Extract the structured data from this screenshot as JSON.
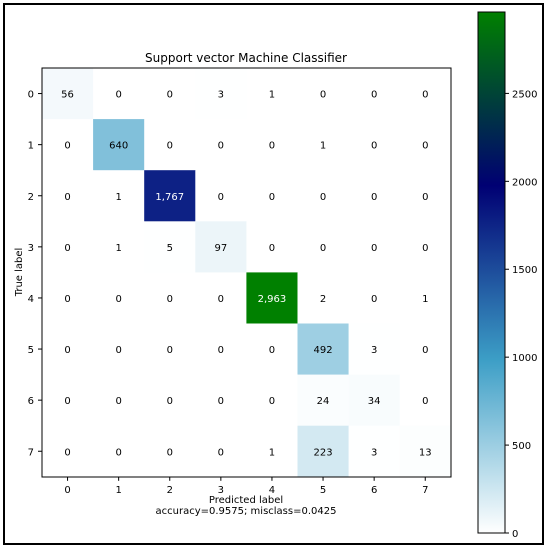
{
  "chart_data": {
    "type": "heatmap",
    "title": "Support vector Machine Classifier",
    "xlabel": "Predicted label",
    "xlabel_sub": "accuracy=0.9575; misclass=0.0425",
    "ylabel": "True label",
    "row_labels": [
      "0",
      "1",
      "2",
      "3",
      "4",
      "5",
      "6",
      "7"
    ],
    "col_labels": [
      "0",
      "1",
      "2",
      "3",
      "4",
      "5",
      "6",
      "7"
    ],
    "cell_text": [
      [
        "56",
        "0",
        "0",
        "3",
        "1",
        "0",
        "0",
        "0"
      ],
      [
        "0",
        "640",
        "0",
        "0",
        "0",
        "1",
        "0",
        "0"
      ],
      [
        "0",
        "1",
        "1,767",
        "0",
        "0",
        "0",
        "0",
        "0"
      ],
      [
        "0",
        "1",
        "5",
        "97",
        "0",
        "0",
        "0",
        "0"
      ],
      [
        "0",
        "0",
        "0",
        "0",
        "2,963",
        "2",
        "0",
        "1"
      ],
      [
        "0",
        "0",
        "0",
        "0",
        "0",
        "492",
        "3",
        "0"
      ],
      [
        "0",
        "0",
        "0",
        "0",
        "0",
        "24",
        "34",
        "0"
      ],
      [
        "0",
        "0",
        "0",
        "0",
        "1",
        "223",
        "3",
        "13"
      ]
    ],
    "values": [
      [
        56,
        0,
        0,
        3,
        1,
        0,
        0,
        0
      ],
      [
        0,
        640,
        0,
        0,
        0,
        1,
        0,
        0
      ],
      [
        0,
        1,
        1767,
        0,
        0,
        0,
        0,
        0
      ],
      [
        0,
        1,
        5,
        97,
        0,
        0,
        0,
        0
      ],
      [
        0,
        0,
        0,
        0,
        2963,
        2,
        0,
        1
      ],
      [
        0,
        0,
        0,
        0,
        0,
        492,
        3,
        0
      ],
      [
        0,
        0,
        0,
        0,
        0,
        24,
        34,
        0
      ],
      [
        0,
        0,
        0,
        0,
        1,
        223,
        3,
        13
      ]
    ],
    "colormap": "ocean_r",
    "vmin": 0,
    "vmax": 2963,
    "colorbar_ticks": [
      "0",
      "500",
      "1000",
      "1500",
      "2000",
      "2500"
    ],
    "grid": false
  }
}
